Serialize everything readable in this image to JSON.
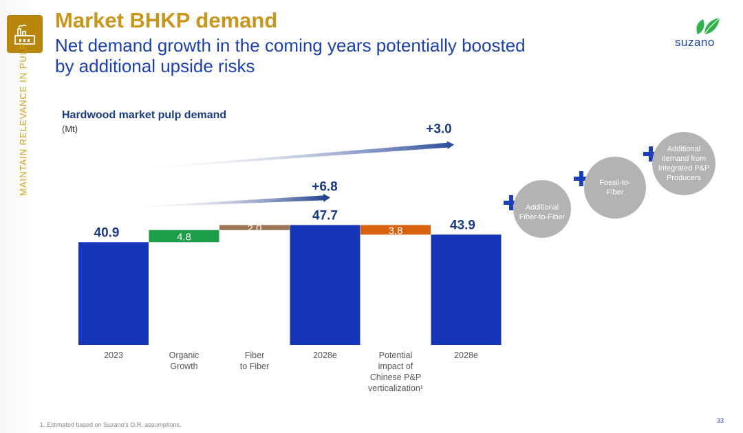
{
  "header": {
    "title": "Market BHKP demand",
    "subtitle": "Net demand growth in the coming years potentially boosted by additional upside risks",
    "side_label": "MAINTAIN RELEVANCE IN PULP"
  },
  "brand": {
    "name": "suzano",
    "gold": "#c9961a",
    "blue": "#1a3fb8",
    "leaf_green": "#2db34a"
  },
  "chart_data": {
    "type": "bar",
    "subtype": "waterfall",
    "title": "Hardwood market pulp demand",
    "unit": "(Mt)",
    "categories": [
      "2023",
      "Organic Growth",
      "Fiber to Fiber",
      "2028e",
      "Potential impact of Chinese P&P verticalization¹",
      "2028e"
    ],
    "category_lines": [
      [
        "2023"
      ],
      [
        "Organic",
        "Growth"
      ],
      [
        "Fiber",
        "to Fiber"
      ],
      [
        "2028e"
      ],
      [
        "Potential",
        "impact of",
        "Chinese P&P",
        "verticalization¹"
      ],
      [
        "2028e"
      ]
    ],
    "values": [
      40.9,
      4.8,
      2.0,
      47.7,
      -3.8,
      43.9
    ],
    "value_labels": [
      "40.9",
      "4.8",
      "2.0",
      "47.7",
      "3.8",
      "43.9"
    ],
    "bar_kinds": [
      "total",
      "increase",
      "increase",
      "total",
      "decrease",
      "total"
    ],
    "colors": [
      "#1536b8",
      "#1a9e46",
      "#9c7452",
      "#1536b8",
      "#d8620f",
      "#1536b8"
    ],
    "growth_annotations": [
      {
        "label": "+6.8",
        "from": "2023",
        "to": "2028e"
      },
      {
        "label": "+3.0",
        "from": "2023",
        "to": "2028e"
      }
    ],
    "ylim": [
      0,
      50
    ]
  },
  "upside_risks": [
    {
      "label": "Additional Fiber-to-Fiber"
    },
    {
      "label": "Fossil-to-Fiber"
    },
    {
      "label": "Additional demand from Integrated P&P Producers"
    }
  ],
  "footer": {
    "footnote": "1. Estimated based on Suzano's O.R. assumptions.",
    "page": "33"
  }
}
